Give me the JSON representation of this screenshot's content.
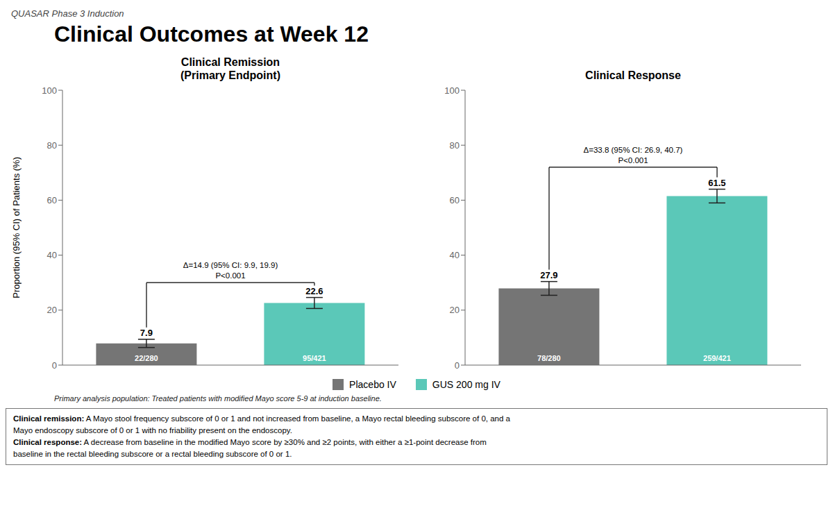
{
  "title": "Clinical Outcomes at Week 12",
  "subtitle": "QUASAR Phase 3 Induction",
  "ylabel": "Proportion (95% CI) of Patients (%)",
  "legend": "bottom",
  "annotations": [
    "Primary analysis population: Treated patients with modified Mayo score 5-9 at induction baseline.",
    "Clinical remission: A Mayo stool frequency subscore of 0 or 1 and not increased from baseline, a Mayo rectal bleeding subscore of 0, and a",
    "Mayo endoscopy subscore of 0 or 1 with no friability present on the endoscopy.",
    "Clinical response: A decrease from baseline in the modified Mayo score by ≥30% and ≥2 points, with either a ≥1-point decrease from",
    "baseline in the rectal bleeding subscore or a rectal bleeding subscore of 0 or 1."
  ],
  "chart_data": [
    {
      "type": "bar",
      "title": "Clinical Remission\n(Primary Endpoint)",
      "categories": [
        "Placebo IV",
        "GUS 200 mg IV"
      ],
      "values": [
        7.9,
        22.6
      ],
      "errors": [
        1.5,
        2.0
      ],
      "n_labels": [
        "22/280",
        "95/421"
      ],
      "colors": [
        "#757575",
        "#5bc8b8"
      ],
      "bracket_y": 30,
      "annotations": [
        "Δ=14.9 (95% CI: 9.9, 19.9)",
        "P<0.001"
      ],
      "ylim": [
        0,
        100
      ],
      "yticks": [
        0,
        20,
        40,
        60,
        80,
        100
      ],
      "grid": false,
      "data_labels": true,
      "tick_labels": "y"
    },
    {
      "type": "bar",
      "title": "Clinical Response",
      "categories": [
        "Placebo IV",
        "GUS 200 mg IV"
      ],
      "values": [
        27.9,
        61.5
      ],
      "errors": [
        2.5,
        2.5
      ],
      "n_labels": [
        "78/280",
        "259/421"
      ],
      "colors": [
        "#757575",
        "#5bc8b8"
      ],
      "bracket_y": 72,
      "annotations": [
        "Δ=33.8 (95% CI: 26.9, 40.7)",
        "P<0.001"
      ],
      "ylim": [
        0,
        100
      ],
      "yticks": [
        0,
        20,
        40,
        60,
        80,
        100
      ],
      "grid": false,
      "data_labels": true,
      "tick_labels": "y"
    }
  ]
}
